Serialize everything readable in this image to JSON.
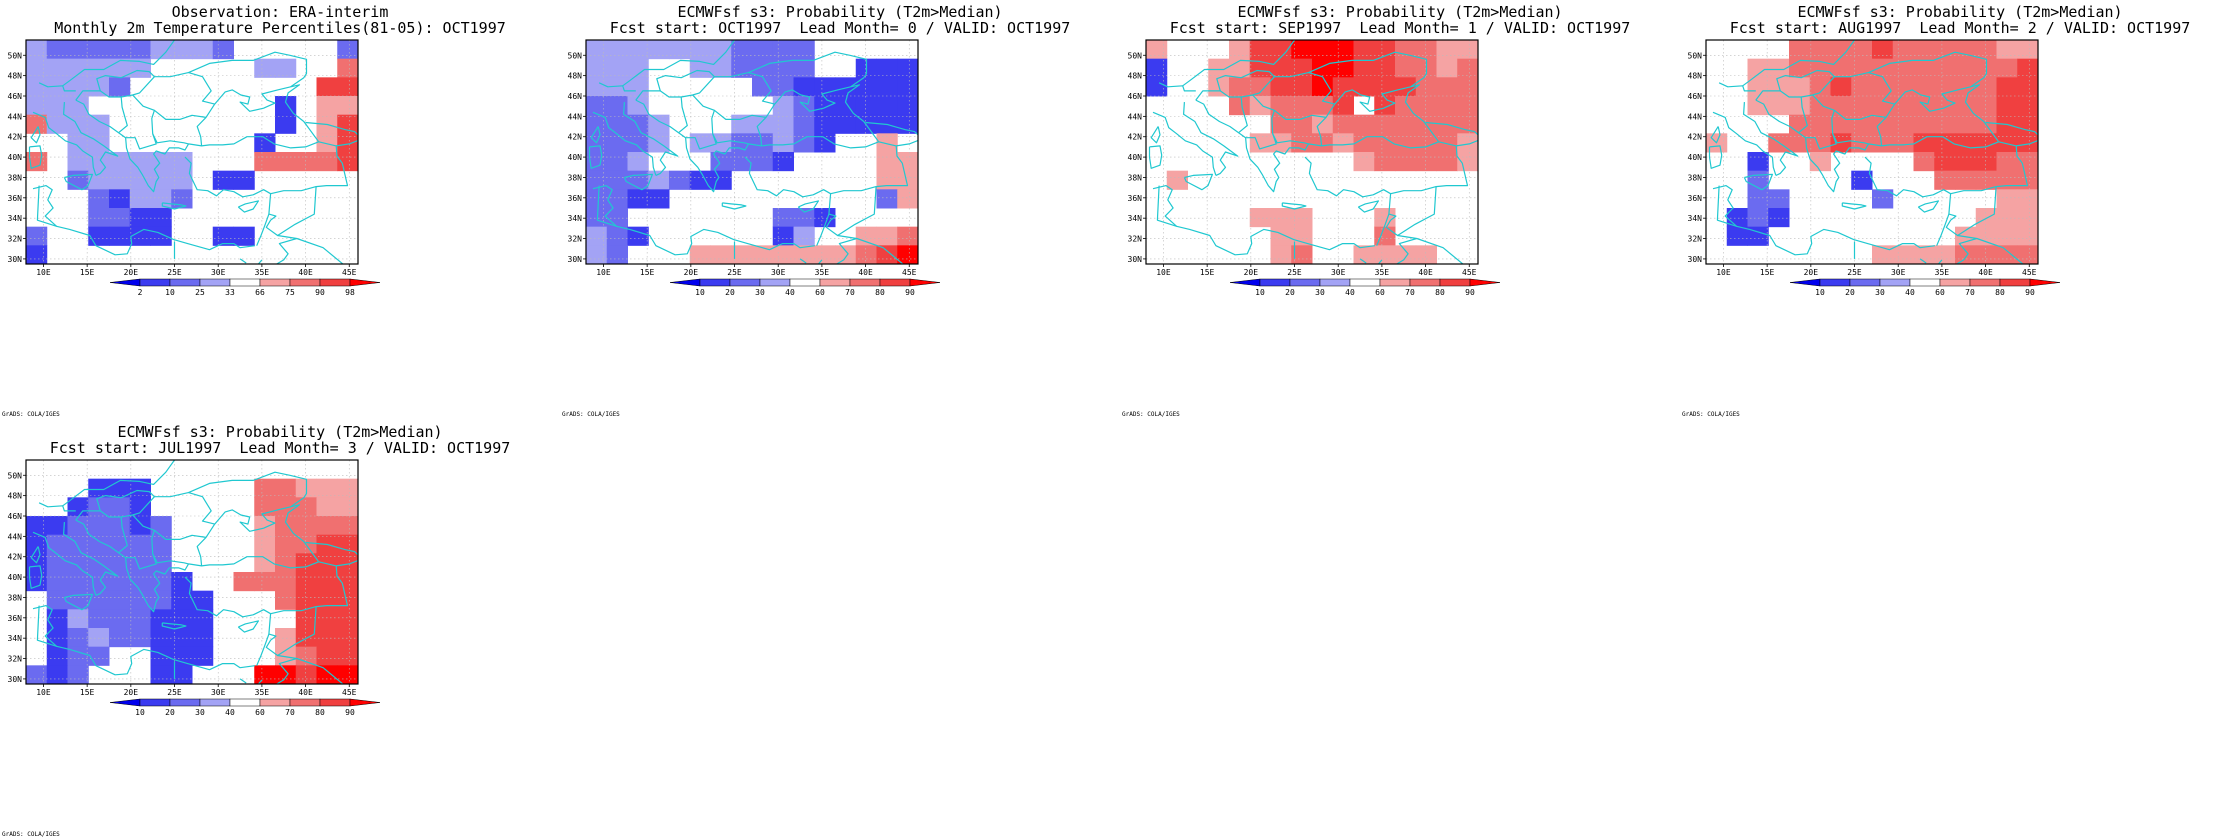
{
  "lat_labels": [
    "50N",
    "48N",
    "46N",
    "44N",
    "42N",
    "40N",
    "38N",
    "36N",
    "34N",
    "32N",
    "30N"
  ],
  "lon_labels": [
    "10E",
    "15E",
    "20E",
    "25E",
    "30E",
    "35E",
    "40E",
    "45E"
  ],
  "credit": "GrADS: COLA/IGES",
  "colors": {
    "blues": [
      "#0000ee",
      "#3b3bf0",
      "#6b6bf0",
      "#a3a3f5"
    ],
    "reds": [
      "#f5a3a3",
      "#f07070",
      "#f04040",
      "#ff0000"
    ],
    "coast": "#20c8d0",
    "grid": "#bbbbbb"
  },
  "panels": [
    {
      "title1": "Observation: ERA-interim",
      "title2": "Monthly 2m Temperature Percentiles(81-05): OCT1997",
      "colorbar_labels": [
        "2",
        "10",
        "25",
        "33",
        "66",
        "75",
        "90",
        "98"
      ],
      "levels": [
        [
          1,
          2,
          2,
          2,
          2,
          2,
          1,
          1,
          1,
          2,
          0,
          0,
          0,
          0,
          0,
          2
        ],
        [
          1,
          1,
          1,
          1,
          1,
          1,
          0,
          0,
          0,
          0,
          0,
          1,
          1,
          0,
          0,
          -2
        ],
        [
          1,
          1,
          1,
          1,
          2,
          0,
          0,
          0,
          0,
          0,
          0,
          0,
          0,
          0,
          -3,
          -3
        ],
        [
          1,
          1,
          1,
          0,
          0,
          0,
          0,
          0,
          0,
          0,
          0,
          0,
          3,
          0,
          -1,
          -1
        ],
        [
          -2,
          1,
          1,
          1,
          0,
          0,
          0,
          0,
          0,
          0,
          0,
          0,
          3,
          0,
          -1,
          -3
        ],
        [
          0,
          0,
          1,
          1,
          0,
          0,
          0,
          0,
          0,
          0,
          0,
          3,
          0,
          0,
          -1,
          -3
        ],
        [
          -2,
          0,
          1,
          1,
          1,
          1,
          1,
          1,
          0,
          0,
          0,
          -2,
          -2,
          -2,
          -2,
          -3
        ],
        [
          0,
          0,
          2,
          1,
          1,
          1,
          1,
          1,
          0,
          3,
          3,
          0,
          0,
          0,
          0,
          0
        ],
        [
          0,
          0,
          0,
          2,
          3,
          1,
          1,
          2,
          0,
          0,
          0,
          0,
          0,
          0,
          0,
          0
        ],
        [
          0,
          0,
          0,
          2,
          2,
          3,
          3,
          0,
          0,
          0,
          0,
          0,
          0,
          0,
          0,
          0
        ],
        [
          2,
          0,
          0,
          3,
          3,
          3,
          3,
          0,
          0,
          3,
          3,
          0,
          0,
          0,
          0,
          0
        ],
        [
          3,
          0,
          0,
          0,
          0,
          0,
          0,
          0,
          0,
          0,
          0,
          0,
          0,
          0,
          0,
          0
        ]
      ]
    },
    {
      "title1": "ECMWFsf s3: Probability (T2m>Median)",
      "title2": "Fcst start: OCT1997  Lead Month= 0 / VALID: OCT1997",
      "colorbar_labels": [
        "10",
        "20",
        "30",
        "40",
        "60",
        "70",
        "80",
        "90"
      ],
      "levels": [
        [
          1,
          1,
          1,
          1,
          1,
          1,
          1,
          2,
          2,
          2,
          2,
          0,
          0,
          0,
          0,
          0
        ],
        [
          1,
          1,
          1,
          0,
          0,
          1,
          1,
          2,
          2,
          2,
          2,
          0,
          0,
          3,
          3,
          3
        ],
        [
          1,
          1,
          1,
          0,
          0,
          0,
          0,
          0,
          2,
          2,
          3,
          3,
          3,
          3,
          3,
          3
        ],
        [
          2,
          2,
          1,
          0,
          0,
          0,
          0,
          0,
          0,
          1,
          2,
          3,
          3,
          3,
          3,
          3
        ],
        [
          2,
          2,
          2,
          1,
          0,
          0,
          0,
          1,
          1,
          1,
          2,
          3,
          3,
          3,
          3,
          3
        ],
        [
          2,
          2,
          2,
          1,
          0,
          1,
          1,
          2,
          2,
          1,
          2,
          3,
          0,
          0,
          -1,
          0
        ],
        [
          2,
          2,
          1,
          0,
          0,
          0,
          2,
          2,
          2,
          3,
          0,
          0,
          0,
          0,
          -1,
          -1
        ],
        [
          2,
          2,
          2,
          1,
          2,
          3,
          3,
          0,
          0,
          0,
          0,
          0,
          0,
          0,
          -1,
          -1
        ],
        [
          2,
          2,
          3,
          3,
          0,
          0,
          0,
          0,
          0,
          0,
          0,
          0,
          0,
          0,
          2,
          -1
        ],
        [
          2,
          2,
          0,
          0,
          0,
          0,
          0,
          0,
          0,
          2,
          2,
          3,
          0,
          0,
          0,
          0
        ],
        [
          1,
          2,
          3,
          0,
          0,
          0,
          0,
          0,
          0,
          3,
          1,
          0,
          0,
          -1,
          -1,
          -2
        ],
        [
          1,
          2,
          0,
          0,
          0,
          -1,
          -1,
          -1,
          -1,
          -1,
          -1,
          -1,
          -1,
          -2,
          -3,
          -4
        ]
      ]
    },
    {
      "title1": "ECMWFsf s3: Probability (T2m>Median)",
      "title2": "Fcst start: SEP1997  Lead Month= 1 / VALID: OCT1997",
      "colorbar_labels": [
        "10",
        "20",
        "30",
        "40",
        "60",
        "70",
        "80",
        "90"
      ],
      "levels": [
        [
          -1,
          0,
          0,
          0,
          -1,
          -3,
          -3,
          -4,
          -4,
          -4,
          -3,
          -3,
          -2,
          -2,
          -1,
          -1
        ],
        [
          3,
          0,
          0,
          -1,
          -1,
          -3,
          -3,
          -3,
          -4,
          -4,
          -3,
          -3,
          -2,
          -2,
          -1,
          -2
        ],
        [
          3,
          0,
          0,
          -1,
          -2,
          -2,
          -3,
          -3,
          -4,
          -3,
          -3,
          -3,
          -3,
          -2,
          -2,
          -2
        ],
        [
          0,
          0,
          0,
          0,
          -2,
          -1,
          -2,
          -2,
          -2,
          -3,
          0,
          -3,
          -2,
          -2,
          -2,
          -2
        ],
        [
          0,
          0,
          0,
          0,
          0,
          0,
          -2,
          -2,
          -1,
          -2,
          -2,
          -2,
          -2,
          -2,
          -2,
          -2
        ],
        [
          0,
          0,
          0,
          0,
          0,
          -1,
          -1,
          -2,
          -2,
          -1,
          -2,
          -2,
          -2,
          -2,
          -2,
          -1
        ],
        [
          0,
          0,
          0,
          0,
          0,
          0,
          0,
          0,
          0,
          0,
          -1,
          -2,
          -2,
          -2,
          -2,
          -1
        ],
        [
          0,
          -1,
          0,
          0,
          0,
          0,
          0,
          0,
          0,
          0,
          0,
          0,
          0,
          0,
          0,
          0
        ],
        [
          0,
          0,
          0,
          0,
          0,
          0,
          0,
          0,
          0,
          0,
          0,
          0,
          0,
          0,
          0,
          0
        ],
        [
          0,
          0,
          0,
          0,
          0,
          -1,
          -1,
          -1,
          0,
          0,
          0,
          -1,
          0,
          0,
          0,
          0
        ],
        [
          0,
          0,
          0,
          0,
          0,
          0,
          -1,
          -1,
          0,
          0,
          0,
          -2,
          0,
          0,
          0,
          0
        ],
        [
          0,
          0,
          0,
          0,
          0,
          0,
          -1,
          -2,
          0,
          0,
          -1,
          -1,
          -1,
          -1,
          0,
          0
        ]
      ]
    },
    {
      "title1": "ECMWFsf s3: Probability (T2m>Median)",
      "title2": "Fcst start: AUG1997  Lead Month= 2 / VALID: OCT1997",
      "colorbar_labels": [
        "10",
        "20",
        "30",
        "40",
        "60",
        "70",
        "80",
        "90"
      ],
      "levels": [
        [
          0,
          0,
          0,
          0,
          -2,
          -2,
          -2,
          -2,
          -3,
          -2,
          -2,
          -2,
          -2,
          -2,
          -1,
          -1
        ],
        [
          0,
          0,
          -1,
          -1,
          -2,
          -2,
          -2,
          -2,
          -2,
          -2,
          -2,
          -2,
          -2,
          -2,
          -2,
          -3
        ],
        [
          0,
          0,
          -1,
          -1,
          -1,
          -2,
          -3,
          -2,
          -2,
          -2,
          -2,
          -2,
          -2,
          -2,
          -3,
          -3
        ],
        [
          0,
          0,
          -1,
          -1,
          -1,
          -2,
          -2,
          -2,
          -2,
          -2,
          -2,
          -2,
          -2,
          -2,
          -3,
          -3
        ],
        [
          0,
          0,
          0,
          0,
          -2,
          -2,
          -2,
          -2,
          -2,
          -2,
          -2,
          -2,
          -2,
          -2,
          -3,
          -3
        ],
        [
          -1,
          0,
          0,
          -2,
          -2,
          -2,
          -3,
          -2,
          -2,
          -2,
          -3,
          -3,
          -3,
          -3,
          -3,
          -3
        ],
        [
          0,
          0,
          3,
          0,
          0,
          -1,
          0,
          0,
          0,
          0,
          -2,
          -3,
          -3,
          -3,
          -2,
          -2
        ],
        [
          0,
          0,
          2,
          0,
          0,
          0,
          0,
          3,
          0,
          0,
          0,
          -2,
          -2,
          -2,
          -2,
          -2
        ],
        [
          0,
          0,
          2,
          2,
          0,
          0,
          0,
          0,
          2,
          0,
          0,
          0,
          0,
          0,
          -1,
          -1
        ],
        [
          0,
          3,
          2,
          3,
          0,
          0,
          0,
          0,
          0,
          0,
          0,
          0,
          0,
          -1,
          -1,
          -1
        ],
        [
          0,
          3,
          3,
          0,
          0,
          0,
          0,
          0,
          0,
          0,
          0,
          0,
          -1,
          -1,
          -1,
          -1
        ],
        [
          0,
          0,
          0,
          0,
          0,
          0,
          0,
          0,
          -1,
          -1,
          -1,
          -1,
          -2,
          -2,
          -2,
          -2
        ]
      ]
    },
    {
      "title1": "ECMWFsf s3: Probability (T2m>Median)",
      "title2": "Fcst start: JUL1997  Lead Month= 3 / VALID: OCT1997",
      "colorbar_labels": [
        "10",
        "20",
        "30",
        "40",
        "60",
        "70",
        "80",
        "90"
      ],
      "levels": [
        [
          0,
          0,
          0,
          0,
          0,
          0,
          0,
          0,
          0,
          0,
          0,
          0,
          0,
          0,
          0,
          0
        ],
        [
          0,
          0,
          0,
          3,
          3,
          3,
          0,
          0,
          0,
          0,
          0,
          -2,
          -2,
          -1,
          -1,
          -1
        ],
        [
          0,
          0,
          3,
          2,
          2,
          3,
          0,
          0,
          0,
          0,
          0,
          -2,
          -2,
          -2,
          -1,
          -1
        ],
        [
          3,
          3,
          2,
          2,
          2,
          3,
          2,
          0,
          0,
          0,
          0,
          -1,
          -2,
          -2,
          -2,
          -2
        ],
        [
          3,
          2,
          2,
          2,
          2,
          2,
          2,
          0,
          0,
          0,
          0,
          -1,
          -2,
          -2,
          -3,
          -3
        ],
        [
          3,
          2,
          2,
          2,
          2,
          2,
          2,
          0,
          0,
          0,
          0,
          -1,
          -2,
          -3,
          -3,
          -3
        ],
        [
          3,
          2,
          2,
          2,
          2,
          2,
          2,
          3,
          0,
          0,
          -2,
          -2,
          -2,
          -3,
          -3,
          -3
        ],
        [
          0,
          2,
          2,
          2,
          2,
          2,
          2,
          3,
          3,
          0,
          0,
          0,
          -2,
          -3,
          -3,
          -3
        ],
        [
          0,
          3,
          1,
          2,
          2,
          2,
          3,
          3,
          3,
          0,
          0,
          0,
          0,
          -3,
          -3,
          -3
        ],
        [
          0,
          3,
          2,
          1,
          2,
          2,
          3,
          3,
          3,
          0,
          0,
          0,
          -1,
          -3,
          -3,
          -3
        ],
        [
          0,
          3,
          2,
          2,
          0,
          0,
          3,
          3,
          3,
          0,
          0,
          0,
          -1,
          -2,
          -3,
          -3
        ],
        [
          2,
          3,
          2,
          0,
          0,
          0,
          3,
          3,
          0,
          0,
          0,
          -4,
          -4,
          -3,
          -4,
          -4
        ]
      ]
    }
  ]
}
